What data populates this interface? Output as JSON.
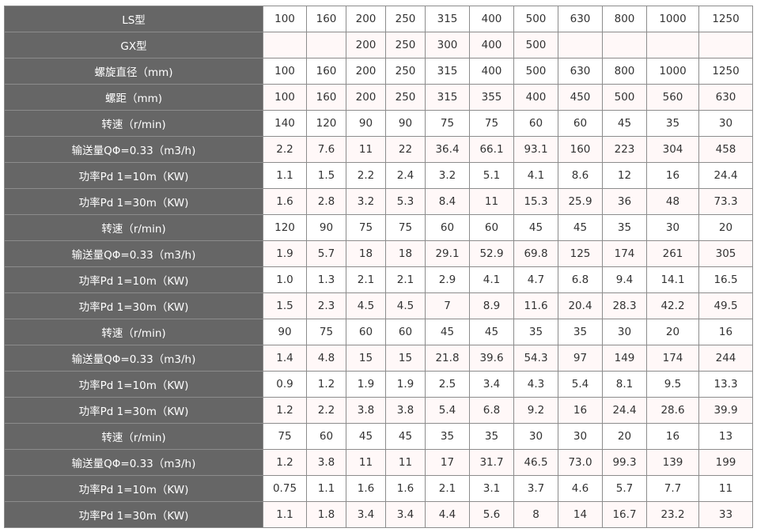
{
  "table": {
    "rows": [
      {
        "label": "LS型",
        "values": [
          "100",
          "160",
          "200",
          "250",
          "315",
          "400",
          "500",
          "630",
          "800",
          "1000",
          "1250"
        ]
      },
      {
        "label": "GX型",
        "values": [
          "",
          "",
          "200",
          "250",
          "300",
          "400",
          "500",
          "",
          "",
          "",
          ""
        ]
      },
      {
        "label": "螺旋直径（mm)",
        "values": [
          "100",
          "160",
          "200",
          "250",
          "315",
          "400",
          "500",
          "630",
          "800",
          "1000",
          "1250"
        ]
      },
      {
        "label": "螺距（mm)",
        "values": [
          "100",
          "160",
          "200",
          "250",
          "315",
          "355",
          "400",
          "450",
          "500",
          "560",
          "630"
        ]
      },
      {
        "label": "转速（r/min)",
        "values": [
          "140",
          "120",
          "90",
          "90",
          "75",
          "75",
          "60",
          "60",
          "45",
          "35",
          "30"
        ]
      },
      {
        "label": "输送量QΦ=0.33（m3/h)",
        "values": [
          "2.2",
          "7.6",
          "11",
          "22",
          "36.4",
          "66.1",
          "93.1",
          "160",
          "223",
          "304",
          "458"
        ]
      },
      {
        "label": "功率Pd 1=10m（KW)",
        "values": [
          "1.1",
          "1.5",
          "2.2",
          "2.4",
          "3.2",
          "5.1",
          "4.1",
          "8.6",
          "12",
          "16",
          "24.4"
        ]
      },
      {
        "label": "功率Pd 1=30m（KW)",
        "values": [
          "1.6",
          "2.8",
          "3.2",
          "5.3",
          "8.4",
          "11",
          "15.3",
          "25.9",
          "36",
          "48",
          "73.3"
        ]
      },
      {
        "label": "转速（r/min)",
        "values": [
          "120",
          "90",
          "75",
          "75",
          "60",
          "60",
          "45",
          "45",
          "35",
          "30",
          "20"
        ]
      },
      {
        "label": "输送量QΦ=0.33（m3/h)",
        "values": [
          "1.9",
          "5.7",
          "18",
          "18",
          "29.1",
          "52.9",
          "69.8",
          "125",
          "174",
          "261",
          "305"
        ]
      },
      {
        "label": "功率Pd 1=10m（KW)",
        "values": [
          "1.0",
          "1.3",
          "2.1",
          "2.1",
          "2.9",
          "4.1",
          "4.7",
          "6.8",
          "9.4",
          "14.1",
          "16.5"
        ]
      },
      {
        "label": "功率Pd 1=30m（KW)",
        "values": [
          "1.5",
          "2.3",
          "4.5",
          "4.5",
          "7",
          "8.9",
          "11.6",
          "20.4",
          "28.3",
          "42.2",
          "49.5"
        ]
      },
      {
        "label": "转速（r/min)",
        "values": [
          "90",
          "75",
          "60",
          "60",
          "45",
          "45",
          "35",
          "35",
          "30",
          "20",
          "16"
        ]
      },
      {
        "label": "输送量QΦ=0.33（m3/h)",
        "values": [
          "1.4",
          "4.8",
          "15",
          "15",
          "21.8",
          "39.6",
          "54.3",
          "97",
          "149",
          "174",
          "244"
        ]
      },
      {
        "label": "功率Pd 1=10m（KW)",
        "values": [
          "0.9",
          "1.2",
          "1.9",
          "1.9",
          "2.5",
          "3.4",
          "4.3",
          "5.4",
          "8.1",
          "9.5",
          "13.3"
        ]
      },
      {
        "label": "功率Pd 1=30m（KW)",
        "values": [
          "1.2",
          "2.2",
          "3.8",
          "3.8",
          "5.4",
          "6.8",
          "9.2",
          "16",
          "24.4",
          "28.6",
          "39.9"
        ]
      },
      {
        "label": "转速（r/min)",
        "values": [
          "75",
          "60",
          "45",
          "45",
          "35",
          "35",
          "30",
          "30",
          "20",
          "16",
          "13"
        ]
      },
      {
        "label": "输送量QΦ=0.33（m3/h)",
        "values": [
          "1.2",
          "3.8",
          "11",
          "11",
          "17",
          "31.7",
          "46.5",
          "73.0",
          "99.3",
          "139",
          "199"
        ]
      },
      {
        "label": "功率Pd 1=10m（KW)",
        "values": [
          "0.75",
          "1.1",
          "1.6",
          "1.6",
          "2.1",
          "3.1",
          "3.7",
          "4.6",
          "5.7",
          "7.7",
          "11"
        ]
      },
      {
        "label": "功率Pd 1=30m（KW)",
        "values": [
          "1.1",
          "1.8",
          "3.4",
          "3.4",
          "4.4",
          "5.6",
          "8",
          "14",
          "16.7",
          "23.2",
          "33"
        ]
      }
    ]
  }
}
